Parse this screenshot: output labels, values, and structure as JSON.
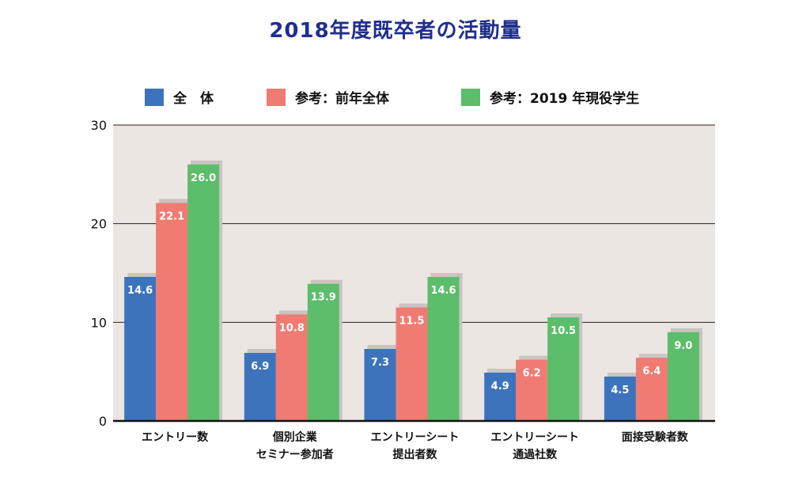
{
  "chart_data": {
    "type": "bar",
    "title": "2018年度既卒者の活動量",
    "categories": [
      [
        "エントリー数"
      ],
      [
        "個別企業",
        "セミナー参加者"
      ],
      [
        "エントリーシート",
        "提出者数"
      ],
      [
        "エントリーシート",
        "通過社数"
      ],
      [
        "面接受験者数"
      ]
    ],
    "series": [
      {
        "name": "全　体",
        "color": "#3d73bd",
        "values": [
          14.6,
          6.9,
          7.3,
          4.9,
          4.5
        ]
      },
      {
        "name": "参考：前年全体",
        "color": "#ef7b73",
        "values": [
          22.1,
          10.8,
          11.5,
          6.2,
          6.4
        ]
      },
      {
        "name": "参考：2019 年現役学生",
        "color": "#5cbd6a",
        "values": [
          26.0,
          13.9,
          14.6,
          10.5,
          9.0
        ]
      }
    ],
    "yticks": [
      0,
      10,
      20,
      30
    ],
    "ylim": [
      0,
      30
    ],
    "grid": true,
    "legend": "top",
    "plot_background": "#ece6e3"
  }
}
